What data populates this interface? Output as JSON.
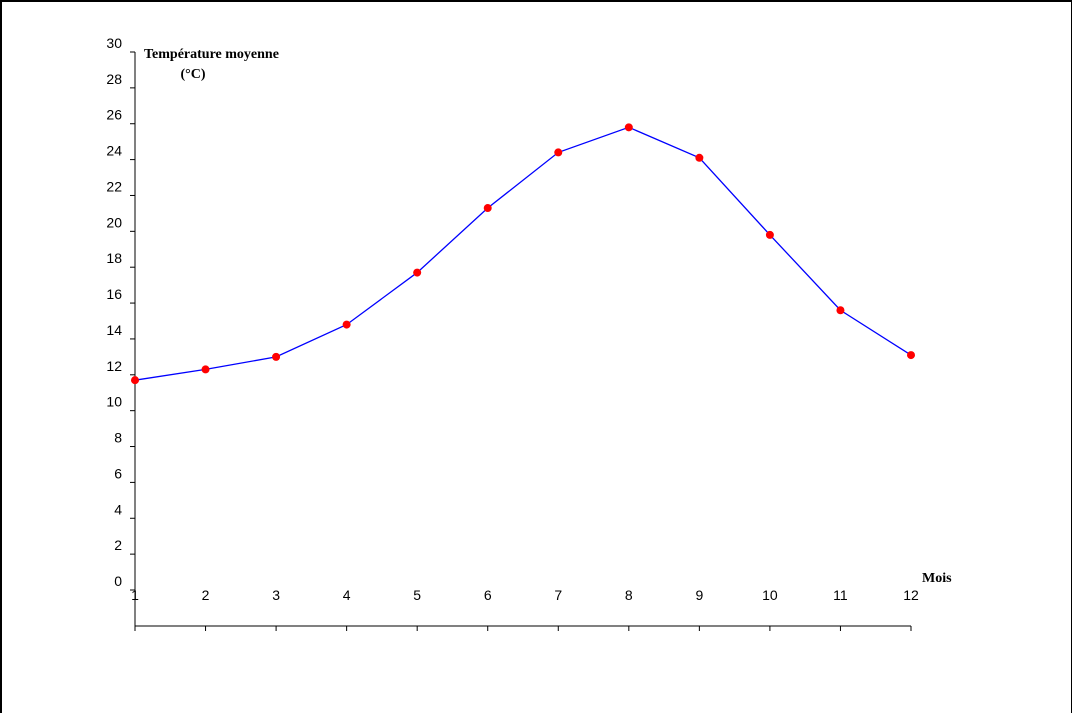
{
  "chart_data": {
    "type": "line",
    "ylabel_line1": "Température moyenne",
    "ylabel_line2": "(°C)",
    "xlabel": "Mois",
    "x": [
      1,
      2,
      3,
      4,
      5,
      6,
      7,
      8,
      9,
      10,
      11,
      12
    ],
    "y_ticks": [
      0,
      2,
      4,
      6,
      8,
      10,
      12,
      14,
      16,
      18,
      20,
      22,
      24,
      26,
      28,
      30
    ],
    "ylim": [
      0,
      30
    ],
    "grid": false,
    "series": [
      {
        "values": [
          11.7,
          12.3,
          13.0,
          14.8,
          17.7,
          21.3,
          24.4,
          25.8,
          24.1,
          19.8,
          15.6,
          13.1
        ],
        "line_color": "#0000ff",
        "marker_color": "#ff0000"
      }
    ]
  }
}
